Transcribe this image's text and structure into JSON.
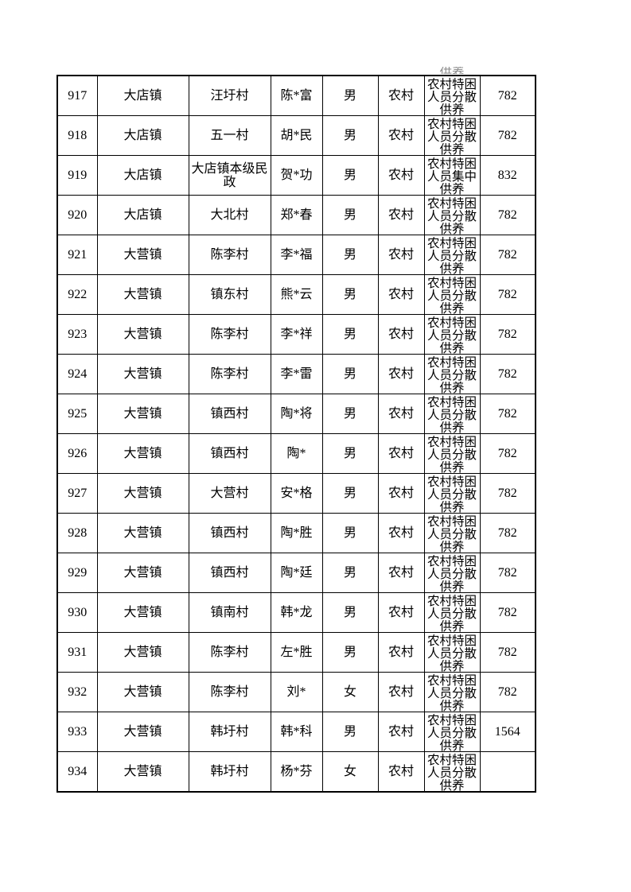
{
  "remnant": {
    "text": "供养"
  },
  "table": {
    "rows": [
      {
        "id": "917",
        "town": "大店镇",
        "village": "汪圩村",
        "name": "陈*富",
        "gender": "男",
        "hukou": "农村",
        "category": "农村特困人员分散供养",
        "amount": "782"
      },
      {
        "id": "918",
        "town": "大店镇",
        "village": "五一村",
        "name": "胡*民",
        "gender": "男",
        "hukou": "农村",
        "category": "农村特困人员分散供养",
        "amount": "782"
      },
      {
        "id": "919",
        "town": "大店镇",
        "village": "大店镇本级民政",
        "name": "贺*功",
        "gender": "男",
        "hukou": "农村",
        "category": "农村特困人员集中供养",
        "amount": "832"
      },
      {
        "id": "920",
        "town": "大店镇",
        "village": "大北村",
        "name": "郑*春",
        "gender": "男",
        "hukou": "农村",
        "category": "农村特困人员分散供养",
        "amount": "782"
      },
      {
        "id": "921",
        "town": "大营镇",
        "village": "陈李村",
        "name": "李*福",
        "gender": "男",
        "hukou": "农村",
        "category": "农村特困人员分散供养",
        "amount": "782"
      },
      {
        "id": "922",
        "town": "大营镇",
        "village": "镇东村",
        "name": "熊*云",
        "gender": "男",
        "hukou": "农村",
        "category": "农村特困人员分散供养",
        "amount": "782"
      },
      {
        "id": "923",
        "town": "大营镇",
        "village": "陈李村",
        "name": "李*祥",
        "gender": "男",
        "hukou": "农村",
        "category": "农村特困人员分散供养",
        "amount": "782"
      },
      {
        "id": "924",
        "town": "大营镇",
        "village": "陈李村",
        "name": "李*雷",
        "gender": "男",
        "hukou": "农村",
        "category": "农村特困人员分散供养",
        "amount": "782"
      },
      {
        "id": "925",
        "town": "大营镇",
        "village": "镇西村",
        "name": "陶*将",
        "gender": "男",
        "hukou": "农村",
        "category": "农村特困人员分散供养",
        "amount": "782"
      },
      {
        "id": "926",
        "town": "大营镇",
        "village": "镇西村",
        "name": "陶*",
        "gender": "男",
        "hukou": "农村",
        "category": "农村特困人员分散供养",
        "amount": "782"
      },
      {
        "id": "927",
        "town": "大营镇",
        "village": "大营村",
        "name": "安*格",
        "gender": "男",
        "hukou": "农村",
        "category": "农村特困人员分散供养",
        "amount": "782"
      },
      {
        "id": "928",
        "town": "大营镇",
        "village": "镇西村",
        "name": "陶*胜",
        "gender": "男",
        "hukou": "农村",
        "category": "农村特困人员分散供养",
        "amount": "782"
      },
      {
        "id": "929",
        "town": "大营镇",
        "village": "镇西村",
        "name": "陶*廷",
        "gender": "男",
        "hukou": "农村",
        "category": "农村特困人员分散供养",
        "amount": "782"
      },
      {
        "id": "930",
        "town": "大营镇",
        "village": "镇南村",
        "name": "韩*龙",
        "gender": "男",
        "hukou": "农村",
        "category": "农村特困人员分散供养",
        "amount": "782"
      },
      {
        "id": "931",
        "town": "大营镇",
        "village": "陈李村",
        "name": "左*胜",
        "gender": "男",
        "hukou": "农村",
        "category": "农村特困人员分散供养",
        "amount": "782"
      },
      {
        "id": "932",
        "town": "大营镇",
        "village": "陈李村",
        "name": "刘*",
        "gender": "女",
        "hukou": "农村",
        "category": "农村特困人员分散供养",
        "amount": "782"
      },
      {
        "id": "933",
        "town": "大营镇",
        "village": "韩圩村",
        "name": "韩*科",
        "gender": "男",
        "hukou": "农村",
        "category": "农村特困人员分散供养",
        "amount": "1564"
      },
      {
        "id": "934",
        "town": "大营镇",
        "village": "韩圩村",
        "name": "杨*芬",
        "gender": "女",
        "hukou": "农村",
        "category": "农村特困人员分散供养",
        "amount": ""
      }
    ]
  }
}
